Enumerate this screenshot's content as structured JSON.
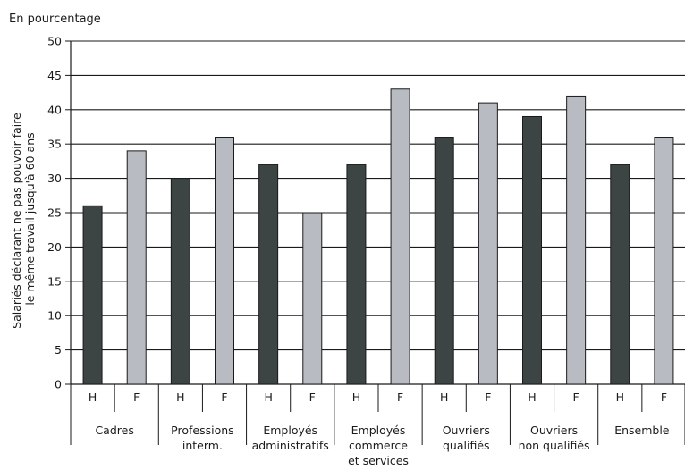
{
  "chart_data": {
    "type": "bar",
    "unit_label": "En pourcentage",
    "ylabel_lines": [
      "Salariés déclarant ne pas pouvoir faire",
      "le même travail jusqu'à 60 ans"
    ],
    "xlabel": "",
    "ylim": [
      0,
      50
    ],
    "yticks": [
      0,
      5,
      10,
      15,
      20,
      25,
      30,
      35,
      40,
      45,
      50
    ],
    "grid": true,
    "legend": "none",
    "categories": [
      {
        "label_lines": [
          "Cadres"
        ]
      },
      {
        "label_lines": [
          "Professions",
          "interm."
        ]
      },
      {
        "label_lines": [
          "Employés",
          "administratifs"
        ]
      },
      {
        "label_lines": [
          "Employés",
          "commerce",
          "et services"
        ]
      },
      {
        "label_lines": [
          "Ouvriers",
          "qualifiés"
        ]
      },
      {
        "label_lines": [
          "Ouvriers",
          "non qualifiés"
        ]
      },
      {
        "label_lines": [
          "Ensemble"
        ]
      }
    ],
    "series": [
      {
        "label": "H",
        "color": "#3d4444",
        "values": [
          26,
          30,
          32,
          32,
          36,
          39,
          32
        ]
      },
      {
        "label": "F",
        "color": "#b8bcc2",
        "values": [
          34,
          36,
          25,
          43,
          41,
          42,
          36
        ]
      }
    ]
  }
}
